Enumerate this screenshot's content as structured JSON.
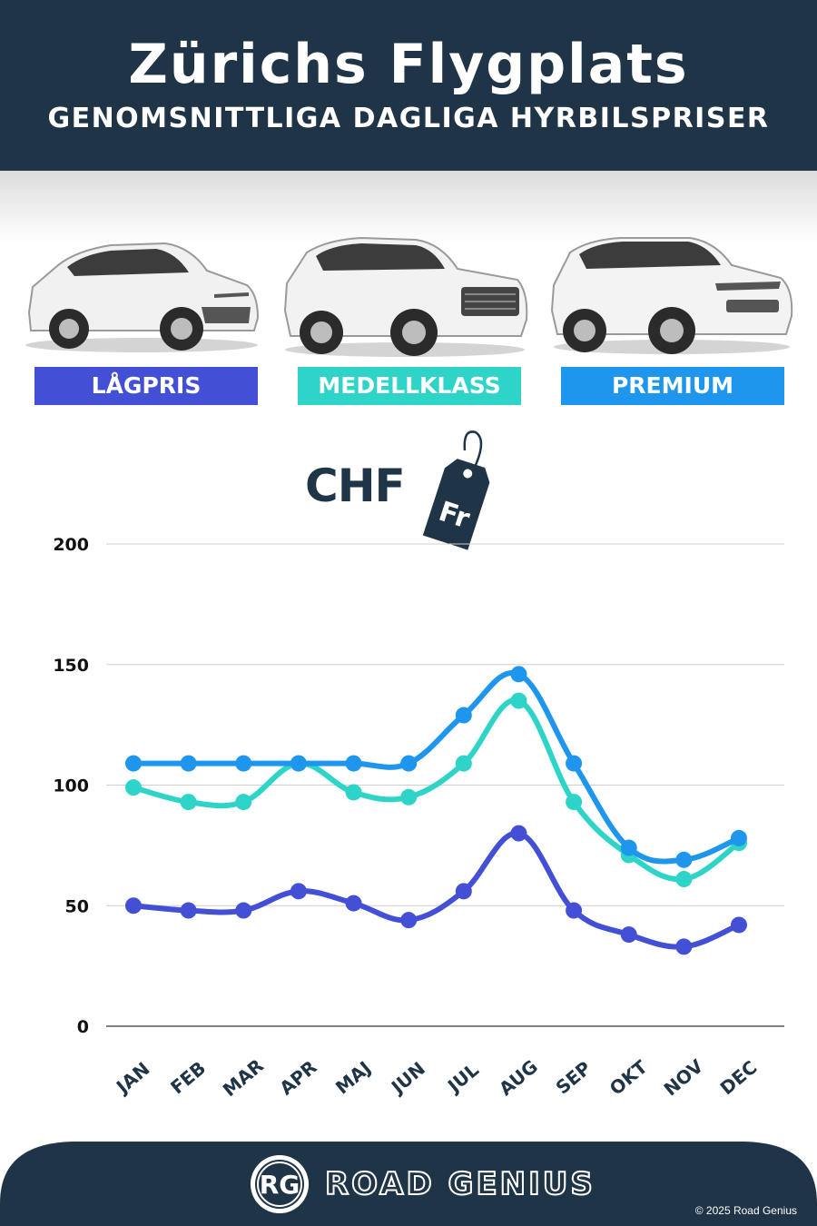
{
  "header": {
    "title": "Zürichs Flygplats",
    "subtitle": "GENOMSNITTLIGA DAGLIGA HYRBILSPRISER"
  },
  "categories": [
    {
      "label": "LÅGPRIS",
      "color": "#4350d6"
    },
    {
      "label": "MEDELLKLASS",
      "color": "#2fd4c8"
    },
    {
      "label": "PREMIUM",
      "color": "#1f96ee"
    }
  ],
  "currency": {
    "label": "CHF",
    "tag_text": "Fr"
  },
  "chart_data": {
    "type": "line",
    "categories": [
      "JAN",
      "FEB",
      "MAR",
      "APR",
      "MAJ",
      "JUN",
      "JUL",
      "AUG",
      "SEP",
      "OKT",
      "NOV",
      "DEC"
    ],
    "yticks": [
      0,
      50,
      100,
      150,
      200
    ],
    "ylim": [
      0,
      200
    ],
    "grid": true,
    "series": [
      {
        "name": "LÅGPRIS",
        "color": "#4350d6",
        "values": [
          50,
          48,
          48,
          56,
          51,
          44,
          56,
          80,
          48,
          38,
          33,
          42
        ]
      },
      {
        "name": "MEDELLKLASS",
        "color": "#2fd4c8",
        "values": [
          99,
          93,
          93,
          109,
          97,
          95,
          109,
          135,
          93,
          71,
          61,
          76
        ]
      },
      {
        "name": "PREMIUM",
        "color": "#1f96ee",
        "values": [
          109,
          109,
          109,
          109,
          109,
          109,
          129,
          146,
          109,
          74,
          69,
          78
        ]
      }
    ]
  },
  "footer": {
    "logo_text": "RG",
    "brand": "ROAD GENIUS",
    "copyright": "© 2025 Road Genius"
  }
}
